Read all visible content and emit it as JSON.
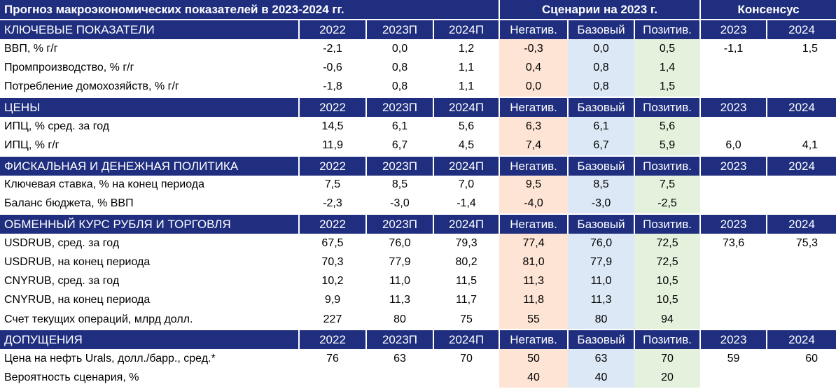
{
  "title": {
    "main": "Прогноз макроэкономических показателей в 2023-2024 гг.",
    "scenarios": "Сценарии на 2023 г.",
    "consensus": "Консенсус"
  },
  "sections": [
    {
      "name": "КЛЮЧЕВЫЕ ПОКАЗАТЕЛИ",
      "headers": [
        "2022",
        "2023П",
        "2024П",
        "Негатив.",
        "Базовый",
        "Позитив.",
        "2023",
        "2024"
      ],
      "rows": [
        {
          "label": "ВВП, % г/г",
          "values": [
            "-2,1",
            "0,0",
            "1,2",
            "-0,3",
            "0,0",
            "0,5",
            "-1,1",
            "1,5"
          ]
        },
        {
          "label": "Промпроизводство, % г/г",
          "values": [
            "-0,6",
            "0,8",
            "1,1",
            "0,4",
            "0,8",
            "1,4",
            "",
            ""
          ]
        },
        {
          "label": "Потребление домохозяйств, % г/г",
          "values": [
            "-1,8",
            "0,8",
            "1,1",
            "0,0",
            "0,8",
            "1,5",
            "",
            ""
          ]
        }
      ]
    },
    {
      "name": "ЦЕНЫ",
      "headers": [
        "2022",
        "2023П",
        "2024П",
        "Негатив.",
        "Базовый",
        "Позитив.",
        "2023",
        "2024"
      ],
      "rows": [
        {
          "label": "ИПЦ, % сред. за год",
          "values": [
            "14,5",
            "6,1",
            "5,6",
            "6,3",
            "6,1",
            "5,6",
            "",
            ""
          ]
        },
        {
          "label": "ИПЦ, % г/г",
          "values": [
            "11,9",
            "6,7",
            "4,5",
            "7,4",
            "6,7",
            "5,9",
            "6,0",
            "4,1"
          ]
        }
      ]
    },
    {
      "name": "ФИСКАЛЬНАЯ И ДЕНЕЖНАЯ ПОЛИТИКА",
      "headers": [
        "2022",
        "2023П",
        "2024П",
        "Негатив.",
        "Базовый",
        "Позитив.",
        "2023",
        "2024"
      ],
      "rows": [
        {
          "label": "Ключевая ставка, % на конец периода",
          "values": [
            "7,5",
            "8,5",
            "7,0",
            "9,5",
            "8,5",
            "7,5",
            "",
            ""
          ]
        },
        {
          "label": "Баланс бюджета, % ВВП",
          "values": [
            "-2,3",
            "-3,0",
            "-1,4",
            "-4,0",
            "-3,0",
            "-2,5",
            "",
            ""
          ]
        }
      ]
    },
    {
      "name": "ОБМЕННЫЙ КУРС РУБЛЯ И ТОРГОВЛЯ",
      "headers": [
        "2022",
        "2023П",
        "2024П",
        "Негатив.",
        "Базовый",
        "Позитив.",
        "2023",
        "2024"
      ],
      "rows": [
        {
          "label": "USDRUB, сред. за год",
          "values": [
            "67,5",
            "76,0",
            "79,3",
            "77,4",
            "76,0",
            "72,5",
            "73,6",
            "75,3"
          ]
        },
        {
          "label": "USDRUB, на конец периода",
          "values": [
            "70,3",
            "77,9",
            "80,2",
            "81,0",
            "77,9",
            "72,5",
            "",
            ""
          ]
        },
        {
          "label": "CNYRUB, сред. за год",
          "values": [
            "10,2",
            "11,0",
            "11,5",
            "11,3",
            "11,0",
            "10,5",
            "",
            ""
          ]
        },
        {
          "label": "CNYRUB, на конец периода",
          "values": [
            "9,9",
            "11,3",
            "11,7",
            "11,8",
            "11,3",
            "10,5",
            "",
            ""
          ]
        },
        {
          "label": "Счет текущих операций, млрд долл.",
          "values": [
            "227",
            "80",
            "75",
            "55",
            "80",
            "94",
            "",
            ""
          ]
        }
      ]
    },
    {
      "name": "ДОПУЩЕНИЯ",
      "headers": [
        "2022",
        "2023П",
        "2024П",
        "Негатив.",
        "Базовый",
        "Позитив.",
        "2023",
        "2024"
      ],
      "rows": [
        {
          "label": "Цена на нефть Urals, долл./барр., сред.*",
          "values": [
            "76",
            "63",
            "70",
            "50",
            "63",
            "70",
            "59",
            "60"
          ]
        },
        {
          "label": "Вероятность сценария, %",
          "values": [
            "",
            "",
            "",
            "40",
            "40",
            "20",
            "",
            ""
          ]
        }
      ]
    }
  ],
  "colors": {
    "header_bg": "#1f2e7e",
    "negative_bg": "#fde4d4",
    "base_bg": "#dce8f6",
    "positive_bg": "#e4f1dc"
  }
}
